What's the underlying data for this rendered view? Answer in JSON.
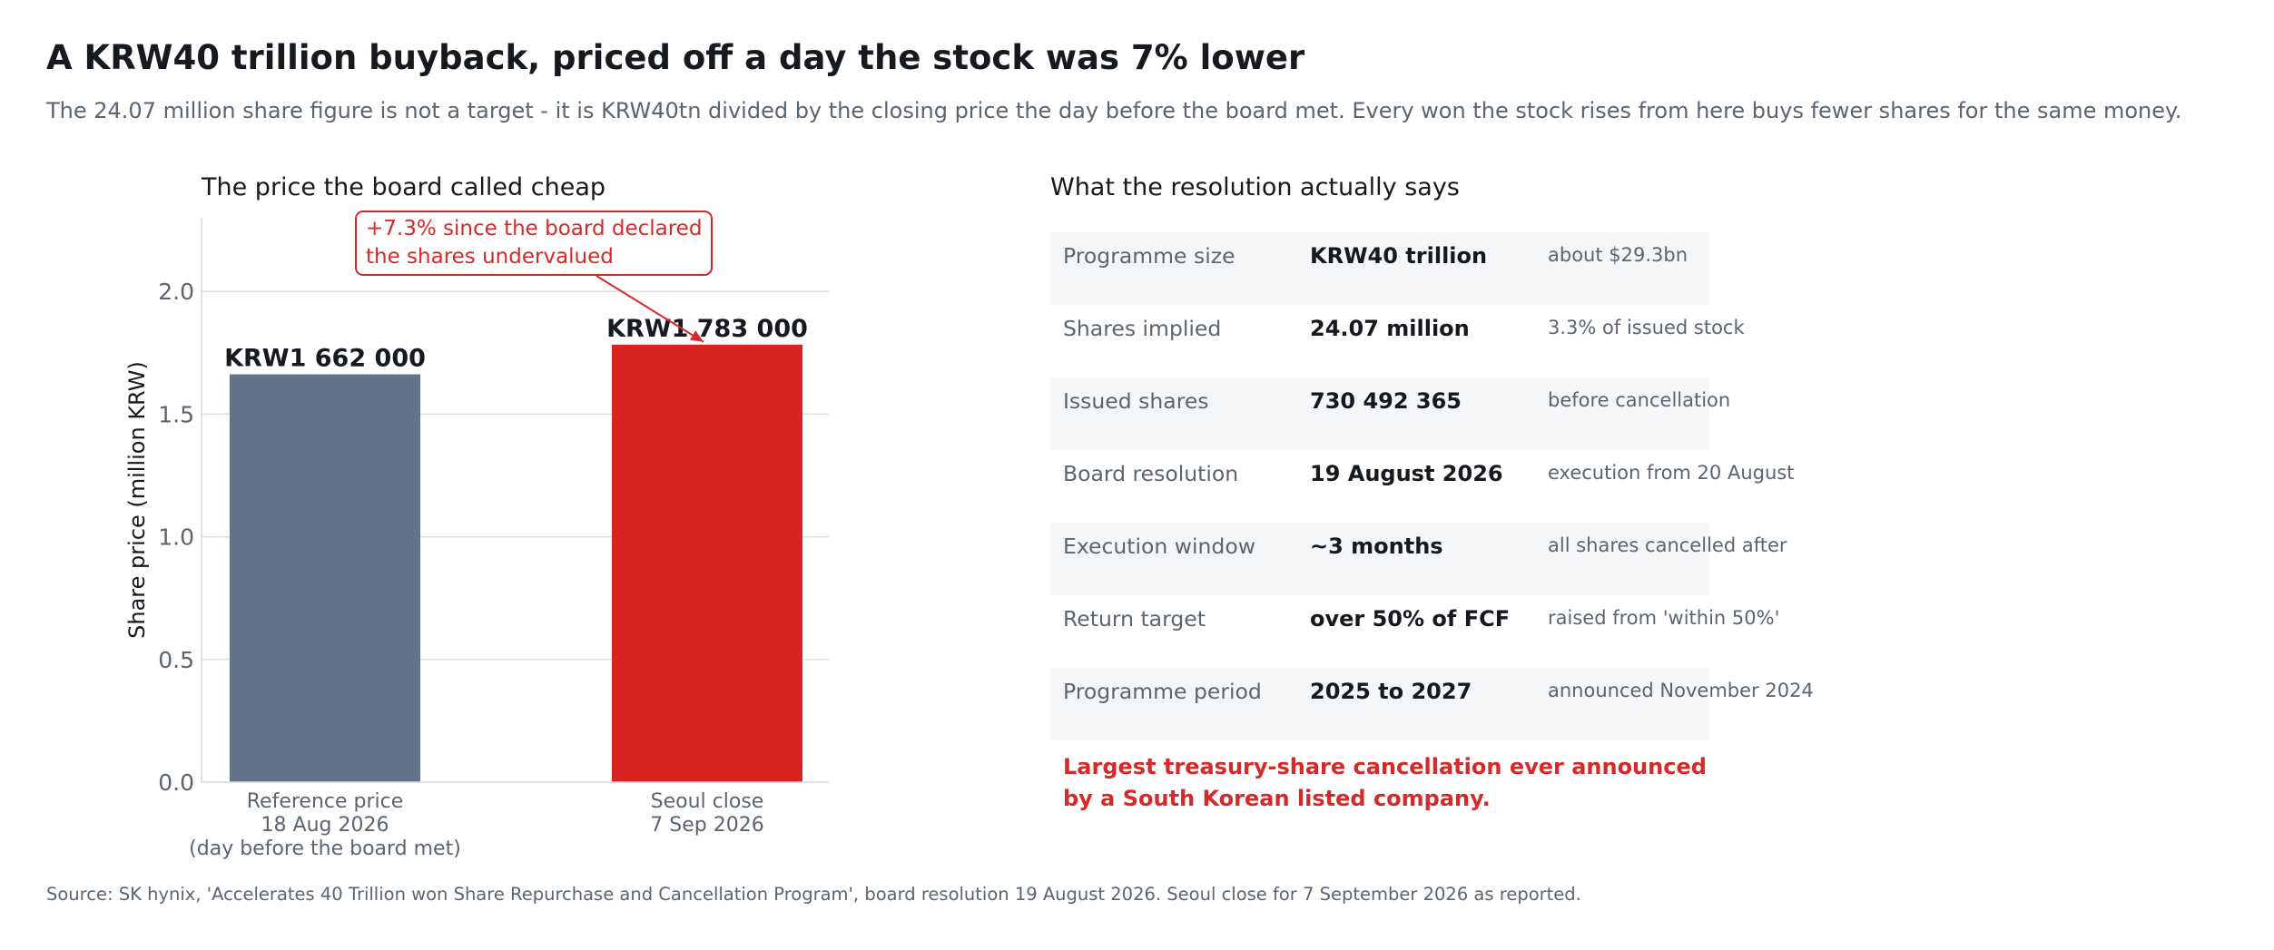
{
  "header": {
    "title": "A KRW40 trillion buyback, priced off a day the stock was 7% lower",
    "subtitle": "The 24.07 million share figure is not a target - it is KRW40tn divided by the closing price the day before the board met. Every won the stock rises from here buys fewer shares for the same money."
  },
  "chart_data": {
    "type": "bar",
    "title": "The price the board called cheap",
    "ylabel": "Share price (million KRW)",
    "xlabel": "",
    "ylim": [
      0,
      2.3
    ],
    "yticks": [
      0.0,
      0.5,
      1.0,
      1.5,
      2.0
    ],
    "ytick_labels": [
      "0.0",
      "0.5",
      "1.0",
      "1.5",
      "2.0"
    ],
    "grid": "horizontal",
    "categories": [
      [
        "Reference price",
        "18 Aug 2026",
        "(day before the board met)"
      ],
      [
        "Seoul close",
        "7 Sep 2026"
      ]
    ],
    "values": [
      1.662,
      1.783
    ],
    "data_labels": [
      "KRW1 662 000",
      "KRW1 783 000"
    ],
    "colors": [
      "#637389",
      "#d92323"
    ],
    "annotation": {
      "lines": [
        "+7.3% since the board declared",
        "the shares undervalued"
      ],
      "color": "#d52a2a",
      "points_to": 1
    }
  },
  "resolution": {
    "title": "What the resolution actually says",
    "rows": [
      {
        "label": "Programme size",
        "value": "KRW40 trillion",
        "note": "about $29.3bn"
      },
      {
        "label": "Shares implied",
        "value": "24.07 million",
        "note": "3.3% of issued stock"
      },
      {
        "label": "Issued shares",
        "value": "730 492 365",
        "note": "before cancellation"
      },
      {
        "label": "Board resolution",
        "value": "19 August 2026",
        "note": "execution from 20 August"
      },
      {
        "label": "Execution window",
        "value": "~3 months",
        "note": "all shares cancelled after"
      },
      {
        "label": "Return target",
        "value": "over 50% of FCF",
        "note": "raised from 'within 50%'"
      },
      {
        "label": "Programme period",
        "value": "2025 to 2027",
        "note": "announced November 2024"
      }
    ],
    "highlight_lines": [
      "Largest treasury-share cancellation ever announced",
      "by a South Korean listed company."
    ],
    "highlight_color": "#d52a2a"
  },
  "footer": {
    "source": "Source: SK hynix, 'Accelerates 40 Trillion won Share Repurchase and Cancellation Program', board resolution 19 August 2026. Seoul close for 7 September 2026 as reported."
  }
}
